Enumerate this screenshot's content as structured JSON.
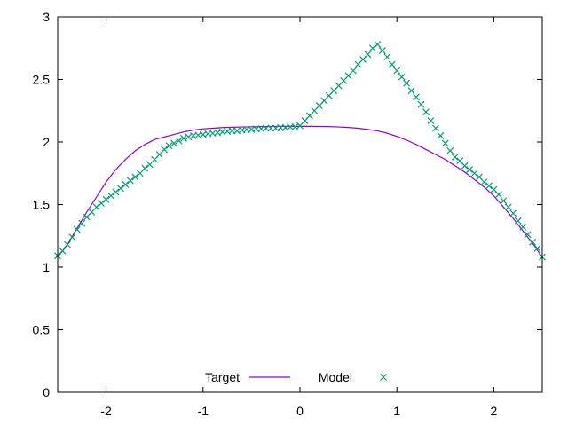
{
  "chart_data": {
    "type": "line",
    "title": "",
    "xlabel": "",
    "ylabel": "",
    "xlim": [
      -2.5,
      2.5
    ],
    "ylim": [
      0,
      3
    ],
    "x_ticks": [
      -2,
      -1,
      0,
      1,
      2
    ],
    "x_tick_labels": [
      "-2",
      "-1",
      "0",
      "1",
      "2"
    ],
    "y_ticks": [
      0,
      0.5,
      1,
      1.5,
      2,
      2.5,
      3
    ],
    "y_tick_labels": [
      "0",
      "0.5",
      "1",
      "1.5",
      "2",
      "2.5",
      "3"
    ],
    "grid": false,
    "legend_position": "bottom-center",
    "series": [
      {
        "name": "Target",
        "style": "line",
        "color": "#9400d3",
        "x": [
          -2.5,
          -2.4,
          -2.3,
          -2.2,
          -2.1,
          -2.0,
          -1.9,
          -1.8,
          -1.7,
          -1.6,
          -1.5,
          -1.4,
          -1.3,
          -1.2,
          -1.1,
          -1.0,
          -0.9,
          -0.8,
          -0.7,
          -0.6,
          -0.5,
          -0.4,
          -0.3,
          -0.2,
          -0.1,
          0.0,
          0.1,
          0.2,
          0.3,
          0.4,
          0.5,
          0.6,
          0.7,
          0.8,
          0.9,
          1.0,
          1.1,
          1.2,
          1.3,
          1.4,
          1.5,
          1.6,
          1.7,
          1.8,
          1.9,
          2.0,
          2.1,
          2.2,
          2.3,
          2.4,
          2.5
        ],
        "y": [
          1.08,
          1.18,
          1.31,
          1.44,
          1.56,
          1.68,
          1.78,
          1.86,
          1.93,
          1.98,
          2.02,
          2.04,
          2.06,
          2.08,
          2.095,
          2.105,
          2.11,
          2.115,
          2.118,
          2.12,
          2.122,
          2.123,
          2.124,
          2.125,
          2.125,
          2.125,
          2.125,
          2.124,
          2.123,
          2.12,
          2.116,
          2.11,
          2.1,
          2.088,
          2.07,
          2.045,
          2.015,
          1.98,
          1.94,
          1.9,
          1.86,
          1.81,
          1.76,
          1.7,
          1.64,
          1.57,
          1.48,
          1.39,
          1.29,
          1.19,
          1.08
        ]
      },
      {
        "name": "Model",
        "style": "points",
        "marker": "cross",
        "color": "#009e73",
        "x": [
          -2.5,
          -2.45,
          -2.4,
          -2.35,
          -2.3,
          -2.25,
          -2.2,
          -2.15,
          -2.1,
          -2.05,
          -2.0,
          -1.95,
          -1.9,
          -1.85,
          -1.8,
          -1.75,
          -1.7,
          -1.65,
          -1.6,
          -1.55,
          -1.5,
          -1.45,
          -1.4,
          -1.35,
          -1.3,
          -1.25,
          -1.2,
          -1.15,
          -1.1,
          -1.05,
          -1.0,
          -0.95,
          -0.9,
          -0.85,
          -0.8,
          -0.75,
          -0.7,
          -0.65,
          -0.6,
          -0.55,
          -0.5,
          -0.45,
          -0.4,
          -0.35,
          -0.3,
          -0.25,
          -0.2,
          -0.15,
          -0.1,
          -0.05,
          0.0,
          0.05,
          0.1,
          0.15,
          0.2,
          0.25,
          0.3,
          0.35,
          0.4,
          0.45,
          0.5,
          0.55,
          0.6,
          0.65,
          0.7,
          0.75,
          0.8,
          0.85,
          0.9,
          0.95,
          1.0,
          1.05,
          1.1,
          1.15,
          1.2,
          1.25,
          1.3,
          1.35,
          1.4,
          1.45,
          1.5,
          1.55,
          1.6,
          1.65,
          1.7,
          1.75,
          1.8,
          1.85,
          1.9,
          1.95,
          2.0,
          2.05,
          2.1,
          2.15,
          2.2,
          2.25,
          2.3,
          2.35,
          2.4,
          2.45,
          2.5
        ],
        "y": [
          1.09,
          1.13,
          1.18,
          1.24,
          1.3,
          1.35,
          1.4,
          1.44,
          1.48,
          1.51,
          1.54,
          1.57,
          1.6,
          1.63,
          1.66,
          1.69,
          1.72,
          1.75,
          1.79,
          1.82,
          1.86,
          1.9,
          1.94,
          1.97,
          1.99,
          2.01,
          2.03,
          2.04,
          2.05,
          2.055,
          2.06,
          2.065,
          2.07,
          2.075,
          2.08,
          2.085,
          2.09,
          2.09,
          2.095,
          2.1,
          2.1,
          2.105,
          2.105,
          2.11,
          2.11,
          2.11,
          2.115,
          2.115,
          2.12,
          2.12,
          2.13,
          2.17,
          2.21,
          2.25,
          2.29,
          2.33,
          2.37,
          2.41,
          2.45,
          2.49,
          2.53,
          2.57,
          2.62,
          2.66,
          2.7,
          2.75,
          2.78,
          2.73,
          2.68,
          2.62,
          2.57,
          2.52,
          2.47,
          2.41,
          2.36,
          2.3,
          2.24,
          2.17,
          2.11,
          2.05,
          1.99,
          1.93,
          1.88,
          1.85,
          1.81,
          1.78,
          1.75,
          1.72,
          1.68,
          1.65,
          1.62,
          1.58,
          1.53,
          1.48,
          1.43,
          1.37,
          1.32,
          1.26,
          1.2,
          1.15,
          1.08
        ]
      }
    ]
  }
}
